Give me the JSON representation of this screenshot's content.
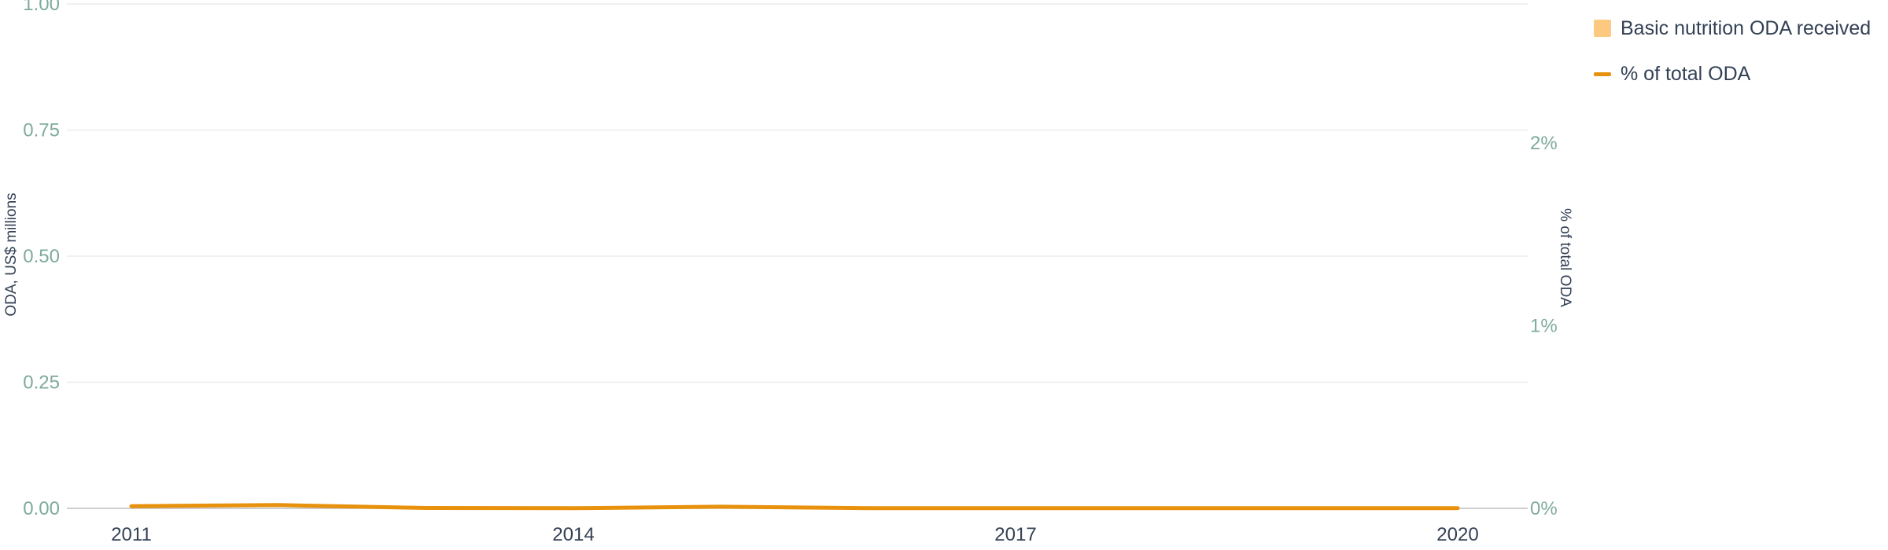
{
  "chart_data": {
    "type": "bar+line",
    "x": [
      2011,
      2012,
      2013,
      2014,
      2015,
      2016,
      2017,
      2018,
      2019,
      2020
    ],
    "x_ticks": [
      "2011",
      "2014",
      "2017",
      "2020"
    ],
    "series": [
      {
        "name": "Basic nutrition ODA received",
        "type": "bar",
        "axis": "left",
        "color": "#fdc980",
        "values": [
          0,
          0,
          0,
          0,
          0,
          0,
          0,
          0,
          0,
          0
        ]
      },
      {
        "name": "% of total ODA",
        "type": "line",
        "axis": "right",
        "color": "#e8910c",
        "values": [
          0.012,
          0.018,
          0.002,
          0.001,
          0.009,
          0.001,
          0.001,
          0.001,
          0.001,
          0.001
        ]
      }
    ],
    "y_left": {
      "label": "ODA, US$ millions",
      "range": [
        0,
        1
      ],
      "ticks": [
        "0.00",
        "0.25",
        "0.50",
        "0.75",
        "1.00"
      ],
      "tick_values": [
        0,
        0.25,
        0.5,
        0.75,
        1.0
      ]
    },
    "y_right": {
      "label": "% of total ODA",
      "range": [
        0,
        2
      ],
      "ticks": [
        "0%",
        "1%",
        "2%"
      ],
      "tick_values": [
        0,
        1,
        2
      ]
    },
    "grid": true,
    "legend_position": "top-right"
  },
  "colors": {
    "grid": "#ececec",
    "axis_line": "#bdbdbd",
    "left_tick": "#7fab9a",
    "text": "#334155"
  }
}
